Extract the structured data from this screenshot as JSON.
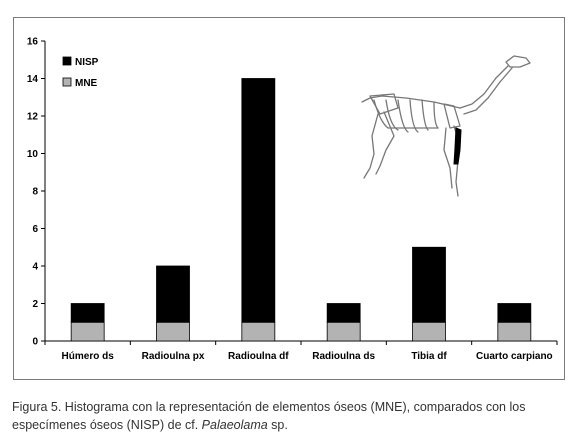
{
  "chart_data": {
    "type": "bar",
    "stacked": true,
    "categories": [
      "Húmero ds",
      "Radioulna px",
      "Radioulna df",
      "Radioulna ds",
      "Tibia df",
      "Cuarto carpiano"
    ],
    "series": [
      {
        "name": "MNE",
        "values": [
          1,
          1,
          1,
          1,
          1,
          1
        ],
        "color": "#b3b3b3"
      },
      {
        "name": "NISP",
        "values": [
          1,
          3,
          13,
          1,
          4,
          1
        ],
        "color": "#000000"
      }
    ],
    "ylim": [
      0,
      16
    ],
    "yticks": [
      "0",
      "2",
      "4",
      "6",
      "8",
      "10",
      "12",
      "14",
      "16"
    ],
    "legend": "top-left",
    "grid": false
  },
  "caption": {
    "main": "Figura 5. Histograma con la representación de elementos óseos (MNE), comparados con los especímenes óseos (NISP) de cf. ",
    "genus": "Palaeolama",
    "tail": " sp."
  },
  "illustration": {
    "icon": "camelid-skeleton-icon"
  }
}
